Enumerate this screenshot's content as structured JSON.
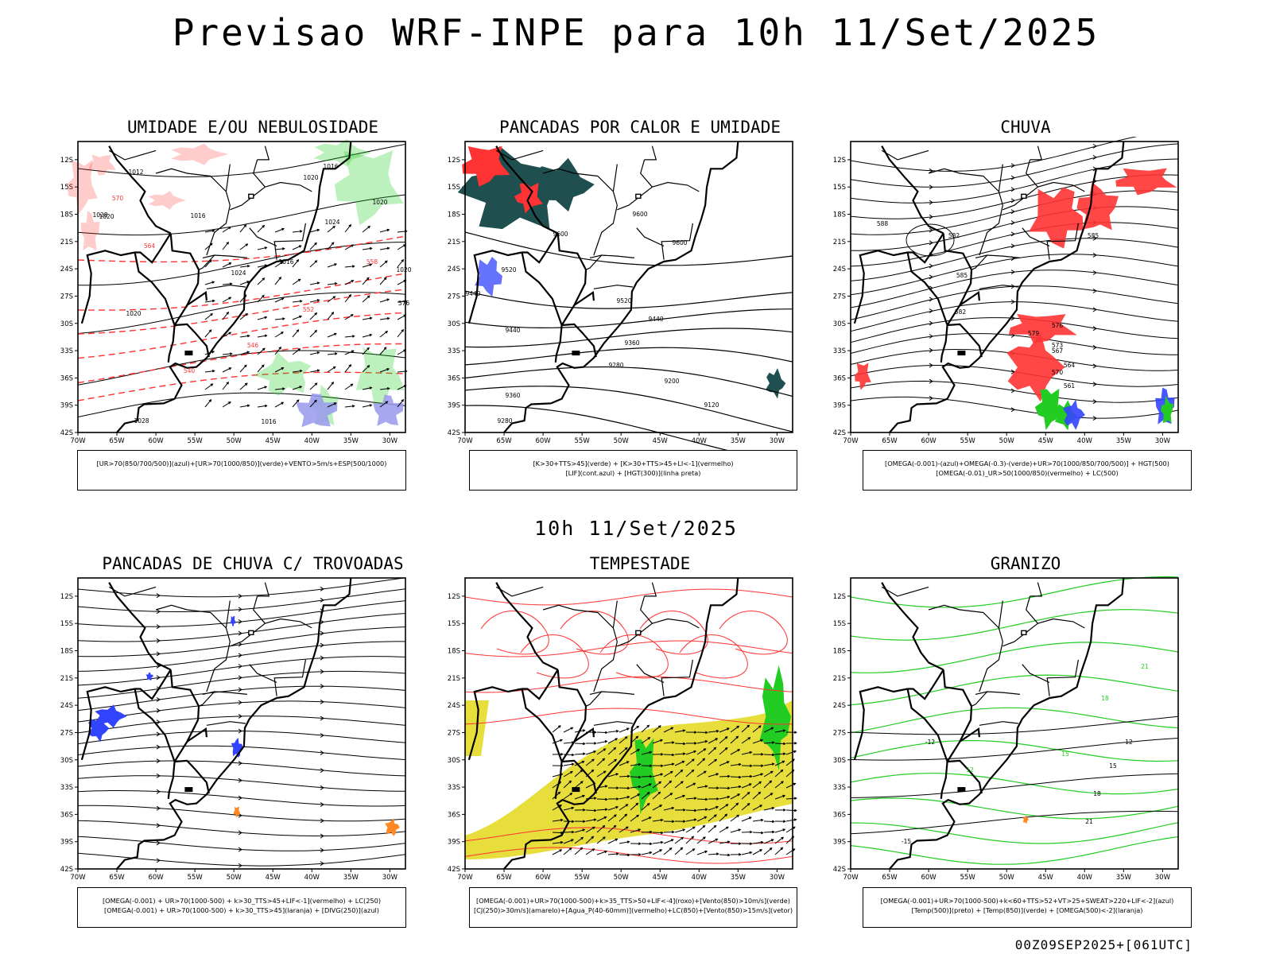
{
  "header": {
    "title": "Previsao WRF-INPE  para 10h 11/Set/2025",
    "mid_title": "10h 11/Set/2025"
  },
  "footer": {
    "run": "00Z09SEP2025+[061UTC]"
  },
  "axes": {
    "lat_labels": [
      "12S",
      "15S",
      "18S",
      "21S",
      "24S",
      "27S",
      "30S",
      "33S",
      "36S",
      "39S",
      "42S"
    ],
    "lon_labels": [
      "70W",
      "65W",
      "60W",
      "55W",
      "50W",
      "45W",
      "40W",
      "35W",
      "30W"
    ]
  },
  "colors": {
    "red": "#ff3333",
    "green": "#22cc22",
    "blue": "#3344ff",
    "teal": "#1f4f4f",
    "yellow": "#e6dc32",
    "lavender": "#9999ee",
    "orange": "#ff8822"
  },
  "panels": [
    {
      "title": "UMIDADE E/OU NEBULOSIDADE",
      "legend": [
        "[UR>70(850/700/500)](azul)+[UR>70(1000/850)](verde)+VENTO>5m/s+ESP(500/1000)"
      ],
      "labels": [
        "1012",
        "1016",
        "1020",
        "1024",
        "1028",
        "1020",
        "1016",
        "1020",
        "1024",
        "1020",
        "1016",
        "1028",
        "1016",
        "1020",
        "576",
        "570",
        "564",
        "558",
        "552",
        "546",
        "540"
      ]
    },
    {
      "title": "PANCADAS POR CALOR E UMIDADE",
      "legend": [
        "[K>30+TTS>45](verde) + [K>30+TTS>45+LI<-1](vermelho)",
        "[LIF](cont.azul) + [HGT(300)](linha preta)"
      ],
      "labels": [
        "9600",
        "9600",
        "9600",
        "9520",
        "9440",
        "9440",
        "9520",
        "9440",
        "9360",
        "9280",
        "9200",
        "9120",
        "9360",
        "9280"
      ]
    },
    {
      "title": "CHUVA",
      "legend": [
        "[OMEGA(-0.001)-(azul)+OMEGA(-0.3)-(verde)+UR>70(1000/850/700/500)] + HGT(500)",
        "[OMEGA(-0.01)_UR>50(1000/850)(vermelho) + LC(500)"
      ],
      "labels": [
        "585",
        "582",
        "579",
        "576",
        "573",
        "570",
        "567",
        "564",
        "561",
        "585",
        "582",
        "588"
      ]
    },
    {
      "title": "PANCADAS DE CHUVA C/ TROVOADAS",
      "legend": [
        "[OMEGA(-0.001) + UR>70(1000-500) + k>30_TTS>45+LIF<-1](vermelho) + LC(250)",
        "[OMEGA(-0.001) + UR>70(1000-500) + k>30_TTS>45](laranja) + [DIVG(250)](azul)"
      ],
      "labels": []
    },
    {
      "title": "TEMPESTADE",
      "legend": [
        "[OMEGA(-0.001)+UR>70(1000-500)+k>35_TTS>50+LIF<-4](roxo)+[Vento(850)>10m/s](verde)",
        "[CJ(250)>30m/s](amarelo)+[Agua_P(40-60mm)](vermelho)+LC(850)+[Vento(850)>15m/s](vetor)"
      ],
      "labels": []
    },
    {
      "title": "GRANIZO",
      "legend": [
        "[OMEGA(-0.001)+UR>70(1000-500)+k<60+TTS>52+VT>25+SWEAT>220+LIF<-2](azul)",
        "[Temp(500)](preto) + [Temp(850)](verde) + [OMEGA(500)<-2](laranja)"
      ],
      "labels": [
        "12",
        "15",
        "18",
        "21",
        "12",
        "15",
        "18",
        "21",
        "-12",
        "-15"
      ]
    }
  ]
}
